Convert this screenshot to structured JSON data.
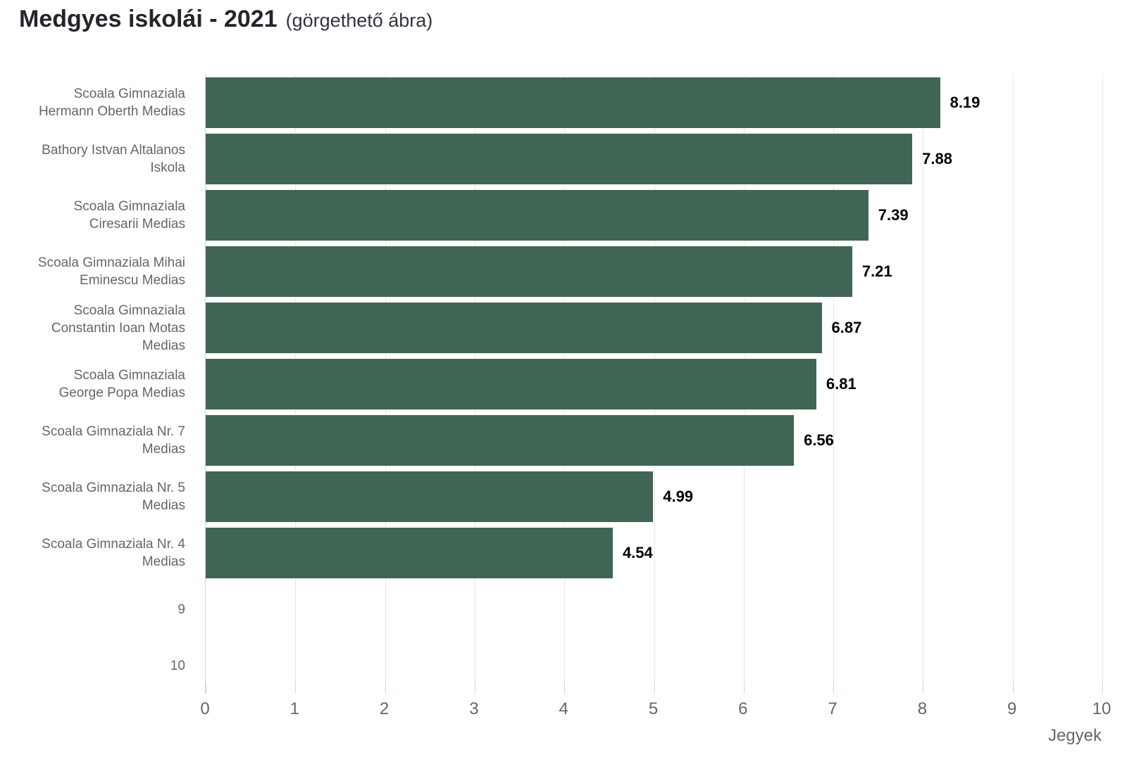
{
  "title": "Medgyes iskolái - 2021",
  "subtitle": "(görgethető ábra)",
  "chart_data": {
    "type": "bar",
    "orientation": "horizontal",
    "title": "Medgyes iskolái - 2021 (görgethető ábra)",
    "categories": [
      "Scoala Gimnaziala Hermann Oberth Medias",
      "Bathory Istvan Altalanos Iskola",
      "Scoala Gimnaziala Ciresarii Medias",
      "Scoala Gimnaziala Mihai Eminescu Medias",
      "Scoala Gimnaziala Constantin Ioan Motas Medias",
      "Scoala Gimnaziala George Popa Medias",
      "Scoala Gimnaziala Nr. 7 Medias",
      "Scoala Gimnaziala Nr. 5 Medias",
      "Scoala Gimnaziala Nr. 4 Medias",
      "9",
      "10"
    ],
    "values": [
      8.19,
      7.88,
      7.39,
      7.21,
      6.87,
      6.81,
      6.56,
      4.99,
      4.54,
      null,
      null
    ],
    "xlabel": "Jegyek",
    "ylabel": "",
    "xlim": [
      0,
      10
    ],
    "x_ticks": [
      0,
      1,
      2,
      3,
      4,
      5,
      6,
      7,
      8,
      9,
      10
    ],
    "grid": true,
    "legend": "none",
    "bar_color": "#406555",
    "grid_color": "#e6e6e6",
    "axis_color": "#ccd6eb",
    "tick_label_color": "#666666",
    "category_label_color": "#666666",
    "data_label_color": "#000000"
  }
}
